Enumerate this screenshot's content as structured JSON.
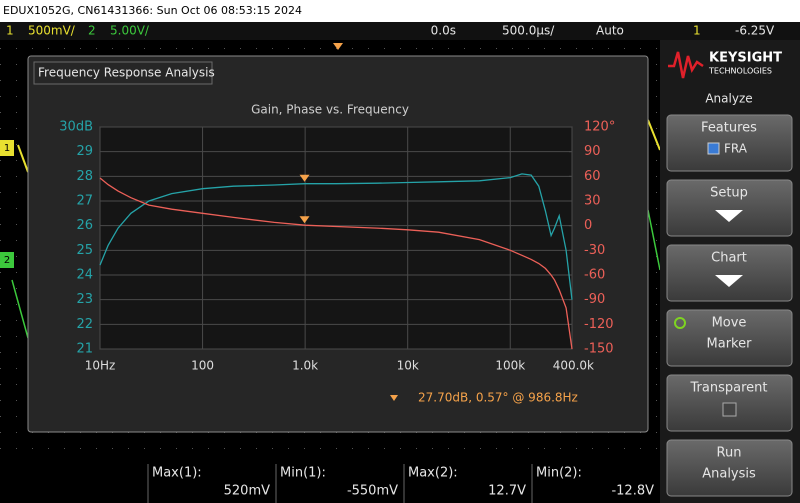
{
  "header": {
    "title": "EDUX1052G, CN61431366: Sun Oct 06 08:53:15 2024"
  },
  "status_bar": {
    "ch1_label": "1",
    "ch1_scale": "500mV/",
    "ch2_label": "2",
    "ch2_scale": "5.00V/",
    "time_delay": "0.0s",
    "time_scale": "500.0µs/",
    "trigger_mode": "Auto",
    "trigger_source": "1",
    "trigger_level": "-6.25V"
  },
  "channel_markers": [
    "1",
    "2"
  ],
  "dialog": {
    "title": "Frequency Response Analysis"
  },
  "chart_data": {
    "type": "line",
    "title": "Gain, Phase vs. Frequency",
    "x": [
      10,
      12,
      15,
      20,
      30,
      50,
      100,
      200,
      500,
      1000,
      2000,
      5000,
      10000,
      20000,
      50000,
      100000,
      130000,
      160000,
      190000,
      220000,
      250000,
      270000,
      300000,
      350000,
      400000
    ],
    "xscale": "log",
    "xlim": [
      10,
      400000
    ],
    "xticks": [
      {
        "value": 10,
        "label": "10Hz"
      },
      100,
      {
        "value": 1000,
        "label": "1.0k"
      },
      {
        "value": 10000,
        "label": "10k"
      },
      {
        "value": 100000,
        "label": "100k"
      },
      {
        "value": 400000,
        "label": "400.0k"
      }
    ],
    "ylim": [
      21,
      30
    ],
    "yticks": [
      {
        "value": 30,
        "label": "30dB"
      },
      29,
      28,
      27,
      26,
      25,
      24,
      23,
      22,
      21
    ],
    "y2lim": [
      -150,
      120
    ],
    "y2ticks": [
      {
        "value": 120,
        "label": "120°"
      },
      90,
      60,
      30,
      0,
      -30,
      -60,
      -90,
      -120,
      -150
    ],
    "grid": true,
    "series": [
      {
        "color": "#25a3a8",
        "values": [
          24.4,
          25.2,
          25.9,
          26.5,
          27.0,
          27.3,
          27.5,
          27.6,
          27.65,
          27.7,
          27.7,
          27.72,
          27.75,
          27.78,
          27.82,
          27.95,
          28.1,
          28.05,
          27.6,
          26.6,
          25.6,
          25.9,
          26.4,
          25.0,
          23.0
        ]
      },
      {
        "color": "#ec6058",
        "axis": "y2",
        "values": [
          58,
          50,
          42,
          34,
          25,
          20,
          15,
          10,
          4,
          0.6,
          -1,
          -3,
          -5,
          -8,
          -17,
          -30,
          -36,
          -41,
          -46,
          -52,
          -60,
          -66,
          -78,
          -100,
          -150
        ]
      }
    ],
    "marker": {
      "x": 986.8,
      "gain": 27.7,
      "phase": 0.57,
      "color": "#f5a24a"
    },
    "marker_readout": "27.70dB, 0.57° @ 986.8Hz"
  },
  "softkeys": {
    "brand": "KEYSIGHT",
    "brand_sub": "TECHNOLOGIES",
    "menu_title": "Analyze",
    "buttons": [
      {
        "lines": [
          "Features"
        ],
        "value": "FRA"
      },
      {
        "lines": [
          "Setup"
        ]
      },
      {
        "lines": [
          "Chart"
        ]
      },
      {
        "lines": [
          "Move",
          "Marker"
        ]
      },
      {
        "lines": [
          "Transparent"
        ]
      },
      {
        "lines": [
          "Run",
          "Analysis"
        ]
      }
    ]
  },
  "measurements": [
    {
      "label": "Max(1):",
      "value": "520mV"
    },
    {
      "label": "Min(1):",
      "value": "-550mV"
    },
    {
      "label": "Max(2):",
      "value": "12.7V"
    },
    {
      "label": "Min(2):",
      "value": "-12.8V"
    }
  ]
}
